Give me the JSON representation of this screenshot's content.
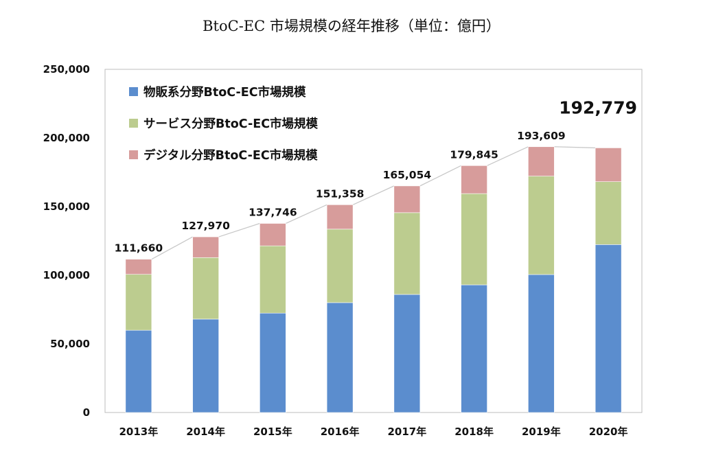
{
  "chart_data": {
    "type": "bar",
    "stacked": true,
    "title": "BtoC-EC 市場規模の経年推移（単位：億円）",
    "categories": [
      "2013年",
      "2014年",
      "2015年",
      "2016年",
      "2017年",
      "2018年",
      "2019年",
      "2020年"
    ],
    "series": [
      {
        "name": "物販系分野BtoC-EC市場規模",
        "color": "#5b8dce",
        "values": [
          59931,
          68043,
          72398,
          80043,
          86008,
          92992,
          100515,
          122333
        ]
      },
      {
        "name": "サービス分野BtoC-EC市場規模",
        "color": "#bccc8f",
        "values": [
          40714,
          44816,
          49014,
          53532,
          59568,
          66471,
          71672,
          45832
        ]
      },
      {
        "name": "デジタル分野BtoC-EC市場規模",
        "color": "#d79c9b",
        "values": [
          11015,
          15111,
          16334,
          17783,
          19478,
          20382,
          21422,
          24614
        ]
      }
    ],
    "totals": [
      111660,
      127970,
      137746,
      151358,
      165054,
      179845,
      193609,
      192779
    ],
    "total_labels": [
      "111,660",
      "127,970",
      "137,746",
      "151,358",
      "165,054",
      "179,845",
      "193,609",
      "192,779"
    ],
    "highlighted_total_index": 7,
    "ylim": [
      0,
      250000
    ],
    "yticks": [
      0,
      50000,
      100000,
      150000,
      200000,
      250000
    ],
    "ytick_labels": [
      "0",
      "50,000",
      "100,000",
      "150,000",
      "200,000",
      "250,000"
    ],
    "xlabel": "",
    "ylabel": "",
    "grid": false,
    "legend_position": "top-left",
    "total_connector_line": true,
    "connector_color": "#c8c8c8"
  }
}
